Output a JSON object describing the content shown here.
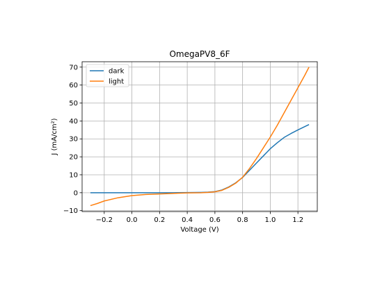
{
  "chart_data": {
    "type": "line",
    "title": "OmegaPV8_6F",
    "xlabel": "Voltage (V)",
    "ylabel": "J (mA/cm²)",
    "xlim": [
      -0.36,
      1.34
    ],
    "ylim": [
      -10.5,
      73
    ],
    "xticks": [
      -0.2,
      0.0,
      0.2,
      0.4,
      0.6,
      0.8,
      1.0,
      1.2
    ],
    "xtick_labels": [
      "−0.2",
      "0.0",
      "0.2",
      "0.4",
      "0.6",
      "0.8",
      "1.0",
      "1.2"
    ],
    "yticks": [
      -10,
      0,
      10,
      20,
      30,
      40,
      50,
      60,
      70
    ],
    "ytick_labels": [
      "−10",
      "0",
      "10",
      "20",
      "30",
      "40",
      "50",
      "60",
      "70"
    ],
    "grid": true,
    "legend_position": "top-left",
    "series": [
      {
        "name": "dark",
        "color": "#1f77b4",
        "x": [
          -0.3,
          -0.2,
          -0.1,
          0.0,
          0.1,
          0.2,
          0.3,
          0.4,
          0.5,
          0.55,
          0.6,
          0.65,
          0.7,
          0.75,
          0.8,
          0.85,
          0.9,
          0.95,
          1.0,
          1.05,
          1.1,
          1.15,
          1.2,
          1.28
        ],
        "y": [
          0,
          0,
          0,
          0,
          0,
          0,
          0,
          0.1,
          0.2,
          0.3,
          0.6,
          1.5,
          3.2,
          5.5,
          8.5,
          12.5,
          16.5,
          20.5,
          24.5,
          27.8,
          30.8,
          33.0,
          35.0,
          38.0
        ]
      },
      {
        "name": "light",
        "color": "#ff7f0e",
        "x": [
          -0.3,
          -0.25,
          -0.2,
          -0.1,
          0.0,
          0.1,
          0.2,
          0.3,
          0.4,
          0.5,
          0.55,
          0.6,
          0.65,
          0.7,
          0.75,
          0.8,
          0.85,
          0.9,
          0.95,
          1.0,
          1.05,
          1.1,
          1.15,
          1.2,
          1.25,
          1.28
        ],
        "y": [
          -7.2,
          -6.0,
          -4.6,
          -2.8,
          -1.6,
          -1.0,
          -0.7,
          -0.4,
          -0.1,
          0.0,
          0.2,
          0.5,
          1.3,
          3.0,
          5.3,
          8.6,
          13.5,
          19.0,
          25.0,
          31.0,
          37.5,
          44.5,
          51.5,
          58.5,
          65.5,
          70.0
        ]
      }
    ]
  }
}
